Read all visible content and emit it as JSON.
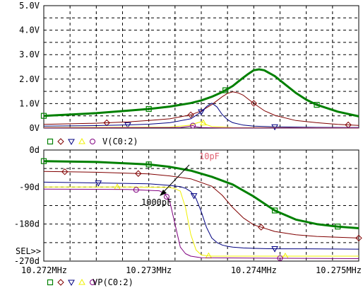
{
  "colors": {
    "green": "#008000",
    "brown": "#800000",
    "blue": "#000080",
    "yellow": "#f0f000",
    "purple": "#800080",
    "grid": "#000000",
    "annotation_pink": "#e06070"
  },
  "chart_data": [
    {
      "type": "line",
      "title": "",
      "x_ticks": [
        "10.272MHz",
        "10.273MHz",
        "10.274MHz",
        "10.275MHz"
      ],
      "x_tick_values": [
        10.272,
        10.273,
        10.274,
        10.275
      ],
      "xlim": [
        10.272,
        10.275
      ],
      "y_ticks": [
        "5.0V",
        "4.0V",
        "3.0V",
        "2.0V",
        "1.0V",
        "0V"
      ],
      "y_tick_values": [
        5,
        4,
        3,
        2,
        1,
        0
      ],
      "ylim": [
        0,
        5
      ],
      "grid": true,
      "legend_label": "V(C0:2)",
      "series": [
        {
          "color": "green",
          "marker": "square",
          "x": [
            10.272,
            10.2725,
            10.2728,
            10.273,
            10.2732,
            10.2734,
            10.2735,
            10.2736,
            10.2737,
            10.2738,
            10.27385,
            10.2739,
            10.27395,
            10.274,
            10.27405,
            10.2741,
            10.2742,
            10.2743,
            10.2744,
            10.2745,
            10.2746,
            10.2748,
            10.275
          ],
          "y": [
            0.5,
            0.61,
            0.71,
            0.78,
            0.88,
            1.02,
            1.13,
            1.28,
            1.47,
            1.72,
            1.89,
            2.06,
            2.22,
            2.36,
            2.4,
            2.36,
            2.12,
            1.78,
            1.44,
            1.16,
            0.95,
            0.67,
            0.48
          ]
        },
        {
          "color": "brown",
          "marker": "diamond",
          "x": [
            10.272,
            10.2725,
            10.2728,
            10.273,
            10.2732,
            10.2734,
            10.2735,
            10.2736,
            10.2737,
            10.27375,
            10.2738,
            10.27385,
            10.2739,
            10.274,
            10.2741,
            10.2742,
            10.2744,
            10.2746,
            10.2748,
            10.275
          ],
          "y": [
            0.15,
            0.2,
            0.25,
            0.31,
            0.38,
            0.54,
            0.7,
            0.96,
            1.28,
            1.42,
            1.48,
            1.44,
            1.34,
            1.01,
            0.71,
            0.52,
            0.31,
            0.22,
            0.15,
            0.11
          ]
        },
        {
          "color": "blue",
          "marker": "triangle-down",
          "x": [
            10.272,
            10.2725,
            10.2728,
            10.273,
            10.2732,
            10.2734,
            10.2735,
            10.27355,
            10.2736,
            10.27365,
            10.2737,
            10.27375,
            10.2738,
            10.2739,
            10.274,
            10.2742,
            10.2744,
            10.2746,
            10.275
          ],
          "y": [
            0.08,
            0.1,
            0.13,
            0.16,
            0.22,
            0.38,
            0.66,
            0.88,
            1.02,
            0.86,
            0.55,
            0.34,
            0.22,
            0.12,
            0.08,
            0.05,
            0.04,
            0.03,
            0.02
          ]
        },
        {
          "color": "yellow",
          "marker": "triangle-up",
          "x": [
            10.272,
            10.2732,
            10.2734,
            10.27345,
            10.2735,
            10.27355,
            10.2736,
            10.2738,
            10.275
          ],
          "y": [
            0.02,
            0.04,
            0.12,
            0.2,
            0.26,
            0.14,
            0.06,
            0.02,
            0.01
          ]
        },
        {
          "color": "purple",
          "marker": "circle",
          "x": [
            10.272,
            10.2733,
            10.27338,
            10.27342,
            10.27345,
            10.2735,
            10.2737,
            10.275
          ],
          "y": [
            0.01,
            0.02,
            0.07,
            0.1,
            0.05,
            0.02,
            0.01,
            0.005
          ]
        }
      ]
    },
    {
      "type": "line",
      "title": "",
      "x_ticks": [
        "10.272MHz",
        "10.273MHz",
        "10.274MHz",
        "10.275MHz"
      ],
      "x_tick_values": [
        10.272,
        10.273,
        10.274,
        10.275
      ],
      "xlim": [
        10.272,
        10.275
      ],
      "y_ticks": [
        "0d",
        "-90d",
        "-180d",
        "-270d"
      ],
      "y_tick_values": [
        0,
        -90,
        -180,
        -270
      ],
      "ylim": [
        -270,
        0
      ],
      "grid": true,
      "legend_label": "VP(C0:2)",
      "cursor_label": "SEL>>",
      "annotations": [
        {
          "text": "10pF",
          "color": "annotation_pink"
        },
        {
          "text": "1000pF",
          "color": "black"
        }
      ],
      "series": [
        {
          "color": "green",
          "marker": "square",
          "x": [
            10.272,
            10.2725,
            10.273,
            10.2732,
            10.2734,
            10.2736,
            10.2738,
            10.274,
            10.2742,
            10.2744,
            10.2746,
            10.2748,
            10.275
          ],
          "y": [
            -27,
            -29,
            -35,
            -41,
            -50,
            -65,
            -84,
            -113,
            -147,
            -169,
            -180,
            -186,
            -190
          ]
        },
        {
          "color": "brown",
          "marker": "diamond",
          "x": [
            10.272,
            10.2725,
            10.273,
            10.2732,
            10.2734,
            10.2736,
            10.2737,
            10.2738,
            10.2739,
            10.274,
            10.2742,
            10.2744,
            10.2746,
            10.275
          ],
          "y": [
            -52,
            -54,
            -58,
            -63,
            -70,
            -88,
            -110,
            -140,
            -165,
            -182,
            -198,
            -206,
            -210,
            -214
          ]
        },
        {
          "color": "blue",
          "marker": "triangle-down",
          "x": [
            10.272,
            10.2725,
            10.273,
            10.2732,
            10.2733,
            10.27335,
            10.2734,
            10.27345,
            10.2735,
            10.27355,
            10.2736,
            10.27365,
            10.2737,
            10.27375,
            10.2738,
            10.2739,
            10.274,
            10.2742,
            10.2745,
            10.275
          ],
          "y": [
            -78,
            -80,
            -82,
            -86,
            -89,
            -93,
            -101,
            -118,
            -150,
            -188,
            -214,
            -225,
            -231,
            -234,
            -236,
            -238,
            -239,
            -240,
            -240,
            -241
          ]
        },
        {
          "color": "yellow",
          "marker": "triangle-up",
          "x": [
            10.272,
            10.2728,
            10.2732,
            10.27325,
            10.2733,
            10.27335,
            10.2734,
            10.27345,
            10.2735,
            10.27355,
            10.2736,
            10.2738,
            10.275
          ],
          "y": [
            -90,
            -90,
            -91,
            -94,
            -100,
            -140,
            -205,
            -243,
            -255,
            -257,
            -258,
            -258,
            -258
          ]
        },
        {
          "color": "purple",
          "marker": "circle",
          "x": [
            10.272,
            10.2728,
            10.2731,
            10.27315,
            10.2732,
            10.27325,
            10.2733,
            10.27335,
            10.2734,
            10.2735,
            10.275
          ],
          "y": [
            -95,
            -96,
            -99,
            -106,
            -125,
            -180,
            -236,
            -252,
            -258,
            -262,
            -264
          ]
        }
      ]
    }
  ]
}
